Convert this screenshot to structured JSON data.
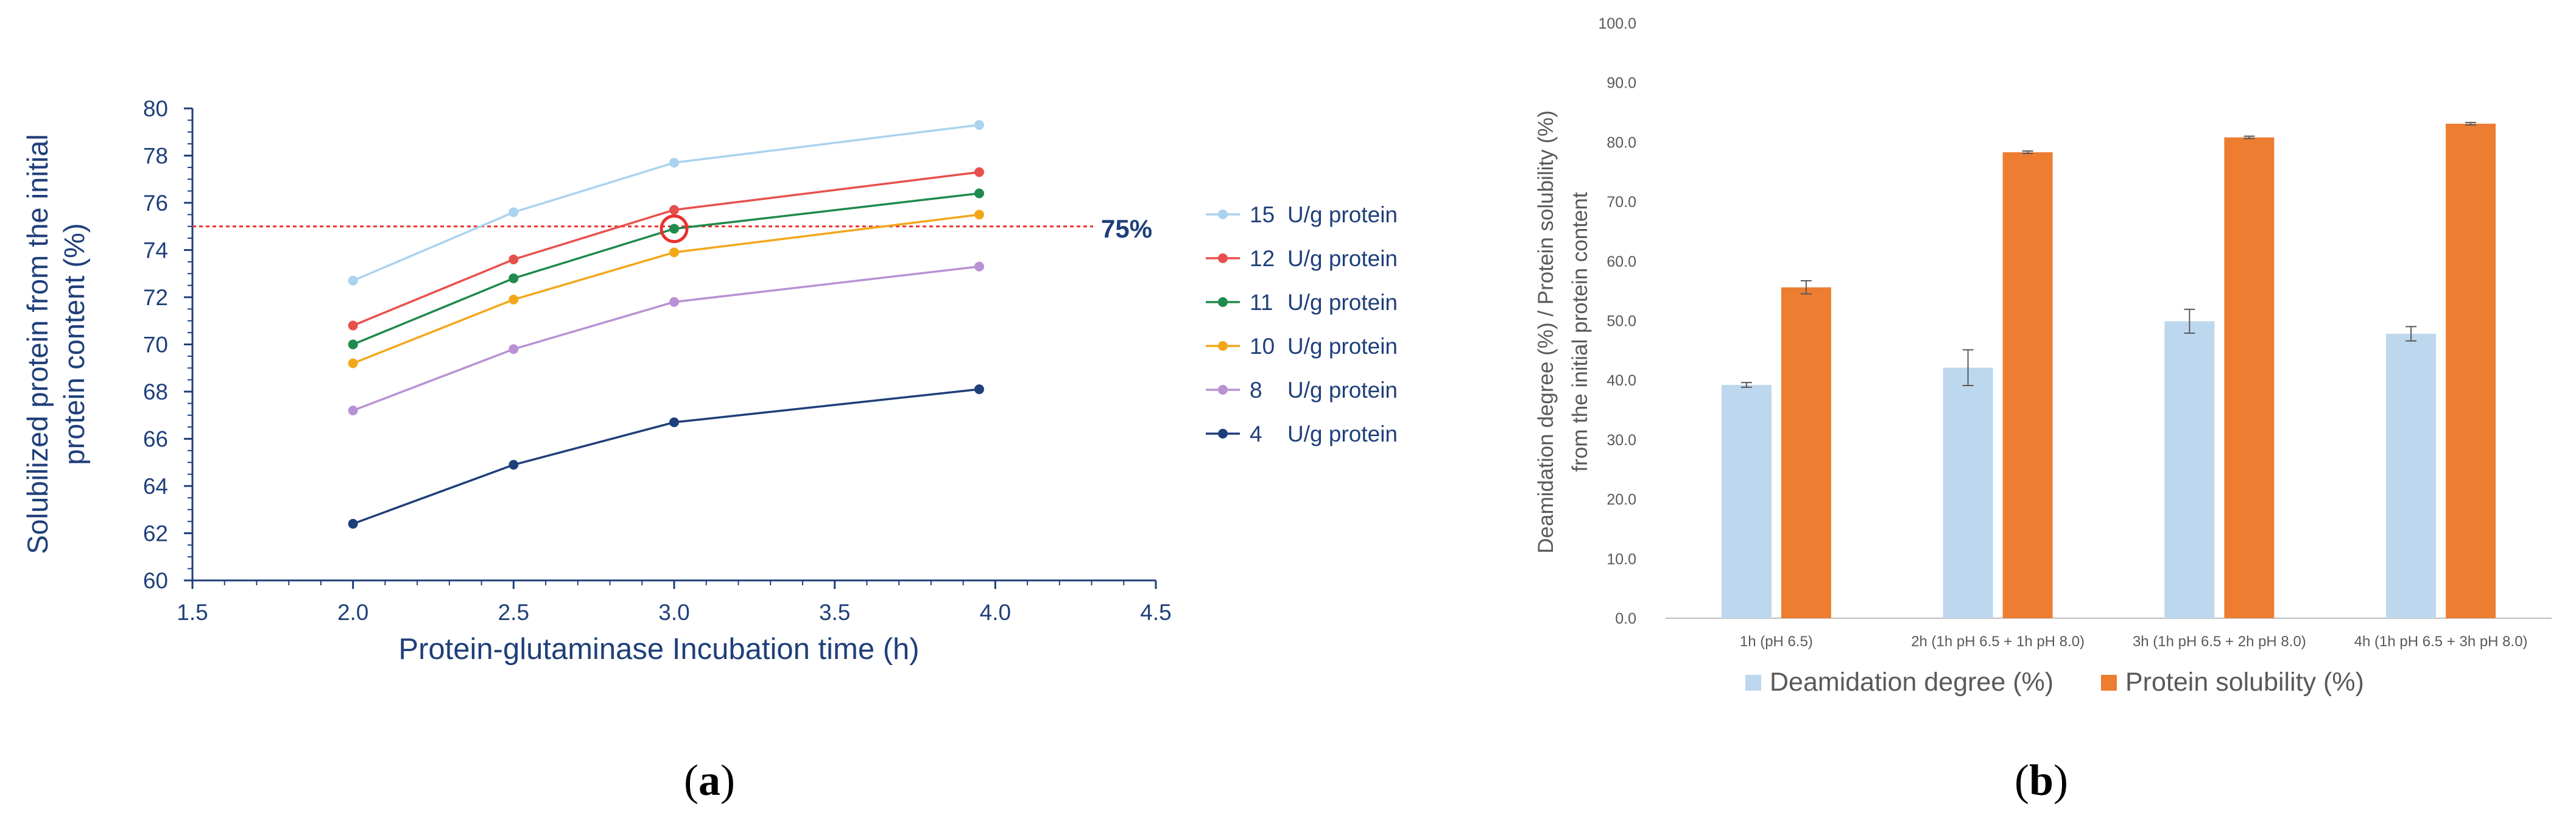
{
  "chart_data": [
    {
      "type": "line",
      "panel_label": "a",
      "title": "",
      "xlabel": "Protein-glutaminase Incubation time (h)",
      "ylabel_lines": [
        "Solubilized protein from the initial",
        "protein content (%)"
      ],
      "xlim": [
        1.5,
        4.5
      ],
      "ylim": [
        60,
        80
      ],
      "x_ticks": [
        "1.5",
        "2.0",
        "2.5",
        "3.0",
        "3.5",
        "4.0",
        "4.5"
      ],
      "y_ticks": [
        "60",
        "62",
        "64",
        "66",
        "68",
        "70",
        "72",
        "74",
        "76",
        "78",
        "80"
      ],
      "grid": false,
      "legend_position": "right",
      "x": [
        2.0,
        2.5,
        3.0,
        3.95
      ],
      "series": [
        {
          "name": "15",
          "unit": "U/g protein",
          "color": "#a9d3ef",
          "values": [
            72.7,
            75.6,
            77.7,
            79.3
          ]
        },
        {
          "name": "12",
          "unit": "U/g protein",
          "color": "#e8504d",
          "values": [
            70.8,
            73.6,
            75.7,
            77.3
          ]
        },
        {
          "name": "11",
          "unit": "U/g protein",
          "color": "#1f8a4d",
          "values": [
            70.0,
            72.8,
            74.9,
            76.4
          ]
        },
        {
          "name": "10",
          "unit": "U/g protein",
          "color": "#f2a71a",
          "values": [
            69.2,
            71.9,
            73.9,
            75.5
          ]
        },
        {
          "name": "8",
          "unit": "U/g protein",
          "color": "#b892d4",
          "values": [
            67.2,
            69.8,
            71.8,
            73.3
          ]
        },
        {
          "name": "4",
          "unit": "U/g protein",
          "color": "#1f3f7a",
          "values": [
            62.4,
            64.9,
            66.7,
            68.1
          ]
        }
      ],
      "reference_line": {
        "y": 75,
        "label": "75%",
        "color": "#e8312e"
      },
      "highlight": {
        "x": 3.0,
        "y": 74.9,
        "color": "#e8312e"
      },
      "colors": {
        "axis": "#1f3f7a",
        "text": "#1f3f7a"
      }
    },
    {
      "type": "bar",
      "panel_label": "b",
      "title": "",
      "xlabel": "",
      "ylabel_lines": [
        "Deamidation degree (%) / Protein solubility (%)",
        "from the initial protein content"
      ],
      "ylim": [
        0,
        100
      ],
      "y_ticks": [
        "0.0",
        "10.0",
        "20.0",
        "30.0",
        "40.0",
        "50.0",
        "60.0",
        "70.0",
        "80.0",
        "90.0",
        "100.0"
      ],
      "grid": false,
      "legend_position": "bottom",
      "categories": [
        "1h (pH 6.5)",
        "2h (1h pH 6.5 + 1h pH 8.0)",
        "3h (1h pH 6.5 + 2h pH 8.0)",
        "4h (1h pH 6.5 + 3h pH 8.0)"
      ],
      "series": [
        {
          "name": "Deamidation degree (%)",
          "color": "#bdd7ee",
          "values": [
            39.2,
            42.1,
            49.9,
            47.8
          ],
          "errors": [
            0.4,
            3.0,
            2.0,
            1.2
          ]
        },
        {
          "name": "Protein solubility (%)",
          "color": "#ed7d31",
          "values": [
            55.6,
            78.3,
            80.8,
            83.1
          ],
          "errors": [
            1.1,
            0.2,
            0.2,
            0.2
          ]
        }
      ],
      "colors": {
        "axis": "#bfbfbf",
        "text": "#595959"
      }
    }
  ]
}
